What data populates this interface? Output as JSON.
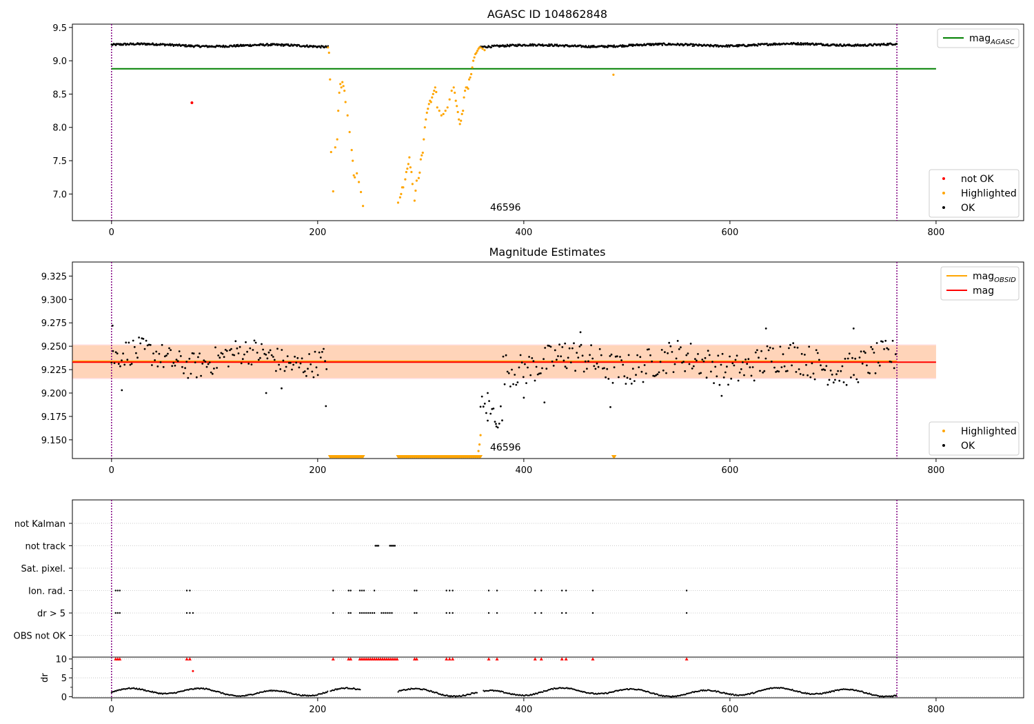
{
  "colors": {
    "ok": "#000000",
    "highlighted": "#ffa500",
    "not_ok": "#ff0000",
    "agasc_line": "#008000",
    "mag_line": "#ff0000",
    "mag_obsid_line": "#ffa500",
    "band_obsid": "#ffd3b4",
    "band_mag": "#ffe0e6",
    "vline": "#800080",
    "grid": "#bbbbbb"
  },
  "chart_data": [
    {
      "type": "scatter",
      "title": "AGASC ID 104862848",
      "xlabel": "",
      "ylabel": "",
      "xlim": [
        -38,
        885
      ],
      "ylim": [
        6.6,
        9.55
      ],
      "xticks": [
        0,
        200,
        400,
        600,
        800
      ],
      "yticks": [
        7.0,
        7.5,
        8.0,
        8.5,
        9.0,
        9.5
      ],
      "ytick_labels": [
        "7.0",
        "7.5",
        "8.0",
        "8.5",
        "9.0",
        "9.5"
      ],
      "annotation": {
        "text": "46596",
        "x": 366,
        "y": 6.7
      },
      "agasc_mag": 8.88,
      "agasc_mag_xrange": [
        0,
        800
      ],
      "obsid_boundaries": [
        0,
        762
      ],
      "legend_upper": [
        {
          "label": "mag",
          "sub": "AGASC",
          "style": "line",
          "color": "#008000"
        }
      ],
      "legend_lower": [
        {
          "label": "not OK",
          "style": "dot",
          "color": "#ff0000"
        },
        {
          "label": "Highlighted",
          "style": "dot",
          "color": "#ffa500"
        },
        {
          "label": "OK",
          "style": "dot",
          "color": "#000000"
        }
      ],
      "series": [
        {
          "name": "OK",
          "color": "#000000",
          "segments": [
            {
              "x": [
                0,
                210
              ],
              "y": [
                9.24,
                9.22
              ]
            },
            {
              "x": [
                358,
                762
              ],
              "y": [
                9.22,
                9.25
              ]
            }
          ]
        },
        {
          "name": "Highlighted",
          "color": "#ffa500",
          "x": [
            210,
            211,
            212,
            213,
            215,
            217,
            219,
            220,
            221,
            222,
            223,
            224,
            225,
            226,
            227,
            229,
            231,
            233,
            234,
            235,
            236,
            238,
            240,
            242,
            244,
            278,
            280,
            281,
            282,
            283,
            285,
            286,
            287,
            288,
            289,
            290,
            291,
            292,
            294,
            295,
            296,
            298,
            299,
            300,
            301,
            302,
            303,
            304,
            305,
            306,
            307,
            308,
            309,
            310,
            311,
            312,
            313,
            314,
            315,
            316,
            318,
            320,
            322,
            324,
            326,
            328,
            330,
            332,
            333,
            334,
            335,
            336,
            337,
            338,
            339,
            340,
            341,
            342,
            343,
            344,
            345,
            346,
            347,
            348,
            349,
            350,
            351,
            352,
            353,
            354,
            355,
            356,
            357,
            358,
            360,
            362,
            487
          ],
          "y": [
            9.2,
            9.12,
            8.72,
            7.63,
            7.04,
            7.7,
            7.82,
            8.25,
            8.52,
            8.65,
            8.6,
            8.68,
            8.62,
            8.55,
            8.38,
            8.18,
            7.93,
            7.66,
            7.5,
            7.28,
            7.25,
            7.31,
            7.18,
            7.03,
            6.82,
            6.87,
            6.95,
            7.0,
            7.1,
            7.1,
            7.22,
            7.33,
            7.38,
            7.45,
            7.55,
            7.4,
            7.33,
            7.15,
            6.9,
            7.05,
            7.2,
            7.24,
            7.32,
            7.52,
            7.58,
            7.62,
            7.82,
            8.0,
            8.12,
            8.22,
            8.28,
            8.35,
            8.4,
            8.38,
            8.45,
            8.5,
            8.55,
            8.6,
            8.53,
            8.3,
            8.25,
            8.18,
            8.2,
            8.25,
            8.3,
            8.42,
            8.55,
            8.6,
            8.52,
            8.4,
            8.32,
            8.23,
            8.12,
            8.05,
            8.1,
            8.2,
            8.25,
            8.45,
            8.55,
            8.6,
            8.6,
            8.58,
            8.72,
            8.75,
            8.8,
            8.9,
            9.0,
            9.05,
            9.1,
            9.12,
            9.15,
            9.18,
            9.2,
            9.2,
            9.18,
            9.16,
            8.79
          ]
        },
        {
          "name": "not OK",
          "color": "#ff0000",
          "x": [
            78
          ],
          "y": [
            8.37
          ]
        }
      ]
    },
    {
      "type": "scatter",
      "title": "Magnitude Estimates",
      "xlabel": "",
      "ylabel": "",
      "xlim": [
        -38,
        885
      ],
      "ylim": [
        9.13,
        9.34
      ],
      "xticks": [
        0,
        200,
        400,
        600,
        800
      ],
      "yticks": [
        9.15,
        9.175,
        9.2,
        9.225,
        9.25,
        9.275,
        9.3,
        9.325
      ],
      "ytick_labels": [
        "9.150",
        "9.175",
        "9.200",
        "9.225",
        "9.250",
        "9.275",
        "9.300",
        "9.325"
      ],
      "annotation": {
        "text": "46596",
        "x": 366,
        "y": 9.14
      },
      "mag": 9.233,
      "mag_band": [
        9.215,
        9.252
      ],
      "mag_obsid": 9.234,
      "mag_obsid_band": [
        9.216,
        9.251
      ],
      "band_xrange": [
        -38,
        800
      ],
      "obsid_boundaries": [
        0,
        762
      ],
      "legend_upper": [
        {
          "label": "mag",
          "sub": "OBSID",
          "style": "line",
          "color": "#ffa500"
        },
        {
          "label": "mag",
          "sub": "",
          "style": "line",
          "color": "#ff0000"
        }
      ],
      "legend_lower": [
        {
          "label": "Highlighted",
          "style": "dot",
          "color": "#ffa500"
        },
        {
          "label": "OK",
          "style": "dot",
          "color": "#000000"
        }
      ],
      "highlighted_floor_ranges": [
        [
          212,
          244
        ],
        [
          278,
          358
        ],
        [
          487,
          488
        ]
      ],
      "highlighted_points": {
        "x": [
          356,
          357,
          358
        ],
        "y": [
          9.138,
          9.145,
          9.155
        ]
      },
      "ok_segments": [
        {
          "x": [
            0,
            210
          ],
          "center": 9.237,
          "spread": 0.018
        },
        {
          "x": [
            358,
            380
          ],
          "center": 9.18,
          "spread": 0.02
        },
        {
          "x": [
            380,
            762
          ],
          "center": 9.232,
          "spread": 0.022
        }
      ],
      "ok_outliers": {
        "x": [
          1,
          10,
          150,
          165,
          208,
          365,
          373,
          400,
          420,
          440,
          455,
          484,
          592,
          635,
          720
        ],
        "y": [
          9.272,
          9.203,
          9.2,
          9.205,
          9.186,
          9.2,
          9.167,
          9.195,
          9.19,
          9.253,
          9.265,
          9.185,
          9.197,
          9.269,
          9.269
        ]
      }
    },
    {
      "type": "scatter",
      "title": "",
      "xlabel": "",
      "ylabel": "",
      "xlim": [
        -38,
        885
      ],
      "xticks": [
        0,
        200,
        400,
        600,
        800
      ],
      "obsid_boundaries": [
        0,
        762
      ],
      "flag_rows": [
        "not Kalman",
        "not track",
        "Sat. pixel.",
        "Ion. rad.",
        "dr > 5",
        "OBS not OK"
      ],
      "flags": [
        {
          "row": "not track",
          "x": [
            256,
            257,
            258,
            259,
            270,
            271,
            272,
            273,
            274,
            275
          ]
        },
        {
          "row": "Ion. rad.",
          "x": [
            4,
            6,
            8,
            73,
            76,
            215,
            230,
            232,
            241,
            243,
            245,
            255,
            294,
            296,
            325,
            328,
            331,
            366,
            374,
            411,
            417,
            437,
            441,
            467,
            558
          ]
        },
        {
          "row": "dr > 5",
          "x": [
            4,
            6,
            8,
            73,
            76,
            79,
            215,
            230,
            232,
            241,
            243,
            245,
            247,
            249,
            251,
            253,
            255,
            262,
            264,
            266,
            268,
            270,
            272,
            294,
            296,
            325,
            328,
            331,
            366,
            374,
            411,
            417,
            437,
            441,
            467,
            558
          ]
        }
      ]
    },
    {
      "type": "scatter",
      "title": "",
      "xlabel": "",
      "ylabel": "dr",
      "xlim": [
        -38,
        885
      ],
      "ylim": [
        -0.3,
        10.5
      ],
      "xticks": [
        0,
        200,
        400,
        600,
        800
      ],
      "yticks": [
        0,
        5,
        10
      ],
      "ytick_labels": [
        "0",
        "5",
        "10"
      ],
      "obsid_boundaries": [
        0,
        762
      ],
      "clipped_points": {
        "x": [
          4,
          6,
          8,
          73,
          76,
          215,
          230,
          232,
          241,
          243,
          245,
          247,
          249,
          251,
          253,
          255,
          257,
          259,
          261,
          263,
          265,
          267,
          269,
          271,
          273,
          275,
          277,
          294,
          296,
          325,
          328,
          331,
          366,
          374,
          411,
          417,
          437,
          441,
          467,
          558
        ],
        "y": 10
      },
      "extra_red": {
        "x": [
          79
        ],
        "y": [
          6.8
        ]
      },
      "gaps": [
        [
          210,
          212
        ],
        [
          242,
          278
        ],
        [
          355,
          360
        ]
      ]
    }
  ]
}
